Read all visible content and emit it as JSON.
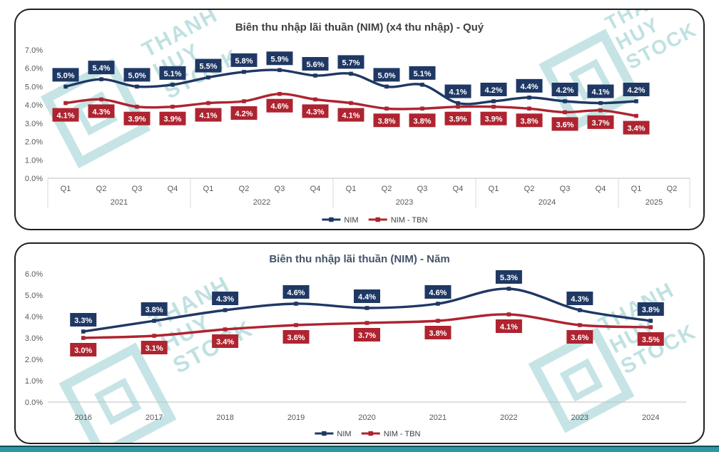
{
  "colors": {
    "nim": "#1f3864",
    "nim_tbn": "#ae2430",
    "axis_text": "#595959",
    "title": "#404040",
    "baseline": "#bfbfbf",
    "separator": "#d9d9d9",
    "watermark_teal": "#6ab7ba",
    "bottom_bar": "#2f97a1"
  },
  "watermark": {
    "lines": [
      "THANH",
      "HUY",
      "STOCK"
    ]
  },
  "chart_data": [
    {
      "type": "line",
      "title": "Biên thu nhập lãi thuần (NIM) (x4 thu nhập) - Quý",
      "categories": [
        "Q1",
        "Q2",
        "Q3",
        "Q4",
        "Q1",
        "Q2",
        "Q3",
        "Q4",
        "Q1",
        "Q2",
        "Q3",
        "Q4",
        "Q1",
        "Q2",
        "Q3",
        "Q4",
        "Q1",
        "Q2"
      ],
      "year_groups": [
        {
          "label": "2021",
          "span": 4
        },
        {
          "label": "2022",
          "span": 4
        },
        {
          "label": "2023",
          "span": 4
        },
        {
          "label": "2024",
          "span": 4
        },
        {
          "label": "2025",
          "span": 2
        }
      ],
      "series": [
        {
          "name": "NIM",
          "color": "#1f3864",
          "values": [
            5.0,
            5.4,
            5.0,
            5.1,
            5.5,
            5.8,
            5.9,
            5.6,
            5.7,
            5.0,
            5.1,
            4.1,
            4.2,
            4.4,
            4.2,
            4.1,
            4.2,
            null
          ]
        },
        {
          "name": "NIM - TBN",
          "color": "#ae2430",
          "values": [
            4.1,
            4.3,
            3.9,
            3.9,
            4.1,
            4.2,
            4.6,
            4.3,
            4.1,
            3.8,
            3.8,
            3.9,
            3.9,
            3.8,
            3.6,
            3.7,
            3.4,
            null
          ]
        }
      ],
      "ylim": [
        0,
        7
      ],
      "ytick_step": 1,
      "ytick_format": "percent1",
      "legend": [
        "NIM",
        "NIM - TBN"
      ],
      "legend_position": "bottom-center",
      "grid": false
    },
    {
      "type": "line",
      "title": "Biên thu nhập lãi thuần (NIM) - Năm",
      "categories": [
        "2016",
        "2017",
        "2018",
        "2019",
        "2020",
        "2021",
        "2022",
        "2023",
        "2024"
      ],
      "series": [
        {
          "name": "NIM",
          "color": "#1f3864",
          "values": [
            3.3,
            3.8,
            4.3,
            4.6,
            4.4,
            4.6,
            5.3,
            4.3,
            3.8
          ]
        },
        {
          "name": "NIM - TBN",
          "color": "#ae2430",
          "values": [
            3.0,
            3.1,
            3.4,
            3.6,
            3.7,
            3.8,
            4.1,
            3.6,
            3.5
          ]
        }
      ],
      "ylim": [
        0,
        6
      ],
      "ytick_step": 1,
      "ytick_format": "percent1",
      "legend": [
        "NIM",
        "NIM - TBN"
      ],
      "legend_position": "bottom-center",
      "grid": false
    }
  ]
}
